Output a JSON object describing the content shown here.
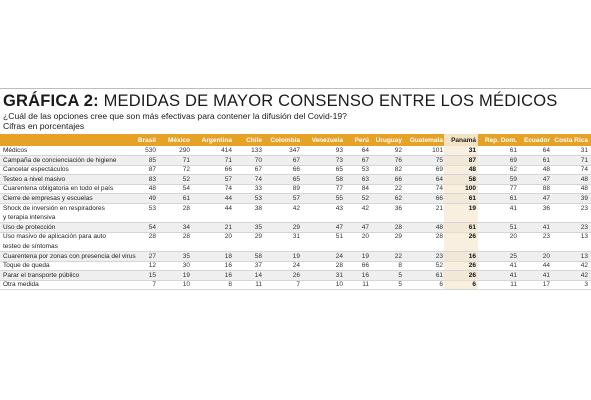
{
  "title_lead": "GRÁFICA 2:",
  "title_rest": " MEDIDAS DE MAYOR CONSENSO ENTRE LOS MÉDICOS",
  "subtitle": "¿Cuál de las opciones cree que son más efectivas para contener la difusión del Covid-19?",
  "units": "Cifras en porcentajes",
  "colors": {
    "header": "#e6a226",
    "highlight_band": "#f3e2c4",
    "shade": "#efefef"
  },
  "chart_data": {
    "type": "table",
    "columns": [
      "Brasil",
      "México",
      "Argentina",
      "Chile",
      "Colombia",
      "Venezuela",
      "Perú",
      "Uruguay",
      "Guatemala",
      "Panamá",
      "Rep. Dom.",
      "Ecuador",
      "Costa Rica"
    ],
    "highlight_column": "Panamá",
    "rows": [
      {
        "label": "Médicos",
        "values": [
          "530",
          "290",
          "414",
          "133",
          "347",
          "93",
          "64",
          "92",
          "101",
          "31",
          "61",
          "64",
          "31"
        ]
      },
      {
        "label": "Campaña de concienciación de higiene",
        "values": [
          "85",
          "71",
          "71",
          "70",
          "67",
          "73",
          "67",
          "76",
          "75",
          "87",
          "69",
          "61",
          "71"
        ]
      },
      {
        "label": "Cancelar espectáculos",
        "values": [
          "87",
          "72",
          "66",
          "67",
          "66",
          "65",
          "53",
          "82",
          "69",
          "48",
          "62",
          "48",
          "74"
        ]
      },
      {
        "label": "Testeo a nivel masivo",
        "values": [
          "83",
          "52",
          "57",
          "74",
          "65",
          "58",
          "63",
          "66",
          "64",
          "58",
          "59",
          "47",
          "48"
        ]
      },
      {
        "label": "Cuarentena obligatoria en todo el país",
        "values": [
          "48",
          "54",
          "74",
          "33",
          "89",
          "77",
          "84",
          "22",
          "74",
          "100",
          "77",
          "88",
          "48"
        ]
      },
      {
        "label": "Cierre de empresas y escuelas",
        "values": [
          "49",
          "61",
          "44",
          "53",
          "57",
          "55",
          "52",
          "62",
          "66",
          "61",
          "61",
          "47",
          "39"
        ]
      },
      {
        "label": "Shock de inversión en respiradores",
        "label2": "y terapia intensiva",
        "values": [
          "53",
          "28",
          "44",
          "38",
          "42",
          "43",
          "42",
          "36",
          "21",
          "19",
          "41",
          "36",
          "23"
        ]
      },
      {
        "label": "Uso de protección",
        "values": [
          "54",
          "34",
          "21",
          "35",
          "29",
          "47",
          "47",
          "28",
          "48",
          "61",
          "51",
          "41",
          "23"
        ]
      },
      {
        "label": "Uso masivo de aplicación para auto",
        "label2": "testeo de síntomas",
        "values": [
          "28",
          "28",
          "20",
          "29",
          "31",
          "51",
          "20",
          "29",
          "28",
          "26",
          "20",
          "23",
          "13"
        ]
      },
      {
        "label": "Cuarentena por zonas con presencia del virus",
        "values": [
          "27",
          "35",
          "18",
          "58",
          "19",
          "24",
          "19",
          "22",
          "23",
          "16",
          "25",
          "20",
          "13"
        ]
      },
      {
        "label": "Toque de queda",
        "values": [
          "12",
          "30",
          "16",
          "37",
          "24",
          "28",
          "66",
          "8",
          "52",
          "26",
          "41",
          "44",
          "42"
        ]
      },
      {
        "label": "Parar el transporte público",
        "values": [
          "15",
          "19",
          "16",
          "14",
          "26",
          "31",
          "16",
          "5",
          "61",
          "26",
          "41",
          "41",
          "42"
        ]
      },
      {
        "label": "Otra medida",
        "values": [
          "7",
          "10",
          "8",
          "11",
          "7",
          "10",
          "11",
          "5",
          "6",
          "6",
          "11",
          "17",
          "3"
        ]
      }
    ]
  }
}
